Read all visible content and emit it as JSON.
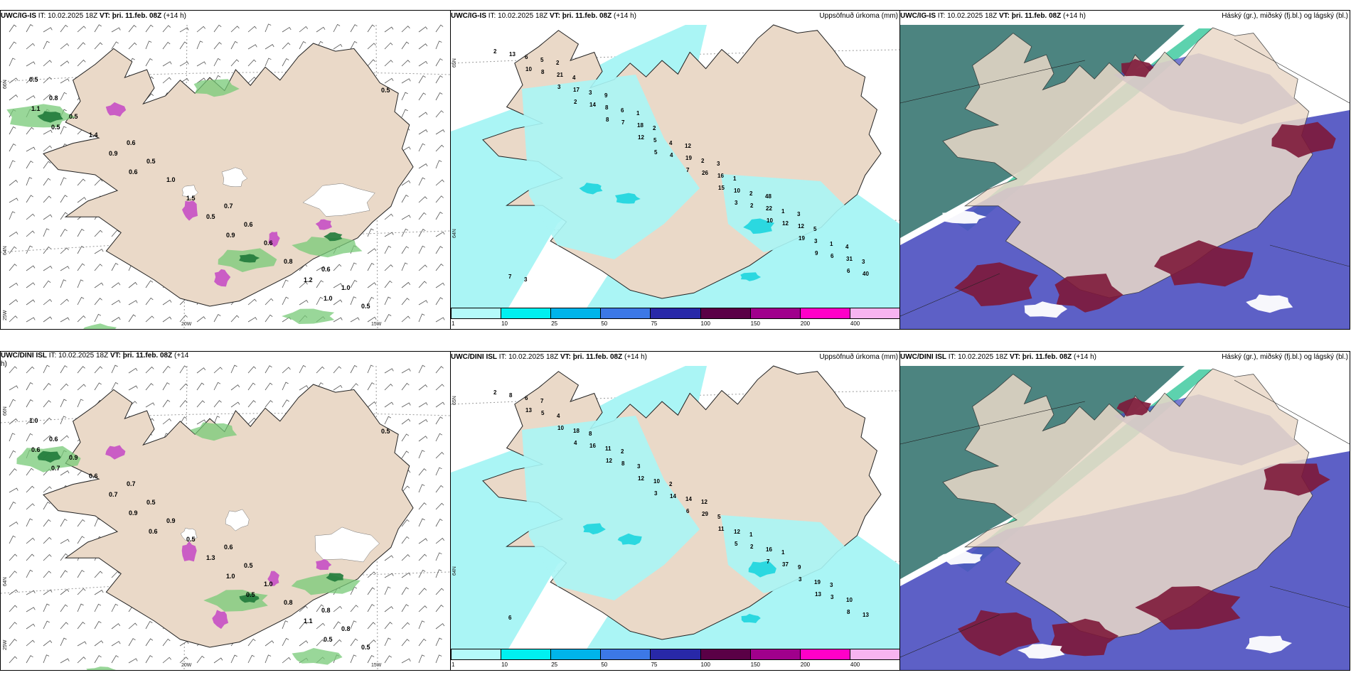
{
  "colors": {
    "land": "#ead9c8",
    "coast": "#222222",
    "precip_green": "#77c977",
    "precip_dark_green": "#1f7a3a",
    "precip_purple": "#c447c4",
    "snow_white": "#ffffff",
    "cloud_high": "#2d6f6a",
    "cloud_mid": "#4b4fc0",
    "cloud_low": "#7d1838",
    "cloud_jet": "#35c79a",
    "accum_base": "#aaf5f5"
  },
  "rows": [
    {
      "name": "UWC/IG-IS",
      "panels": [
        {
          "type": "wind-precip",
          "model": "UWC/IG-IS",
          "it": "IT: 10.02.2025 18Z",
          "vt": "VT: þri. 11.feb. 08Z",
          "lead": "(+14 h)",
          "right_title": "",
          "lat_ticks": [
            "66N",
            "64N",
            "25W"
          ],
          "lon_ticks": [
            "20W",
            "15W"
          ],
          "labels": [
            "0.5",
            "0.6",
            "0.7",
            "0.6",
            "0.8",
            "0.5",
            "0.6",
            "1.0",
            "0.5",
            "1.0",
            "0.6",
            "0.5",
            "1.4",
            "1.5",
            "0.8",
            "0.5",
            "0.9",
            "0.5",
            "1.2",
            "1.1",
            "0.6",
            "0.9",
            "1.0",
            "0.5"
          ]
        },
        {
          "type": "accum",
          "model": "UWC/IG-IS",
          "it": "IT: 10.02.2025 18Z",
          "vt": "VT: þri. 11.feb. 08Z",
          "lead": "(+14 h)",
          "right_title": "Uppsöfnuð úrkoma (mm)",
          "lat_ticks": [
            "65N",
            "64N"
          ],
          "labels": [
            "2",
            "2",
            "5",
            "3",
            "9",
            "10",
            "8",
            "7",
            "10",
            "6",
            "3",
            "12",
            "15",
            "19",
            "13",
            "14",
            "4",
            "2",
            "6",
            "8",
            "7",
            "26",
            "12",
            "40",
            "17",
            "5",
            "10",
            "3",
            "6",
            "8",
            "19",
            "22",
            "31",
            "21",
            "18",
            "16",
            "12",
            "7",
            "3",
            "4",
            "2",
            "1",
            "5",
            "6",
            "2",
            "1",
            "3",
            "4",
            "2",
            "1",
            "5",
            "3",
            "9",
            "12",
            "48",
            "4",
            "2",
            "1",
            "3",
            "3"
          ]
        },
        {
          "type": "cloud",
          "model": "UWC/IG-IS",
          "it": "IT: 10.02.2025 18Z",
          "vt": "VT: þri. 11.feb. 08Z",
          "lead": "(+14 h)",
          "right_title": "Háský (gr.), miðský (fj.bl.) og lágský (bl.)"
        }
      ]
    },
    {
      "name": "UWC/DINI ISL",
      "panels": [
        {
          "type": "wind-precip",
          "model": "UWC/DINI ISL",
          "it": "IT: 10.02.2025 18Z",
          "vt": "VT: þri. 11.feb. 08Z",
          "lead": "(+14",
          "lead2": "h)",
          "right_title": "",
          "lat_ticks": [
            "66N",
            "64N",
            "25W"
          ],
          "lon_ticks": [
            "20W",
            "15W"
          ],
          "labels": [
            "1.0",
            "0.7",
            "0.6",
            "0.8",
            "0.6",
            "0.5",
            "0.5",
            "0.8",
            "0.9",
            "0.9",
            "1.0",
            "0.5",
            "0.6",
            "0.5",
            "0.8",
            "0.5",
            "0.7",
            "1.3",
            "1.1",
            "0.6",
            "0.9",
            "1.0",
            "0.5",
            "0.7",
            "0.6",
            "0.5"
          ]
        },
        {
          "type": "accum",
          "model": "UWC/DINI ISL",
          "it": "IT: 10.02.2025 18Z",
          "vt": "VT: þri. 11.feb. 08Z",
          "lead": "(+14 h)",
          "right_title": "Uppsöfnuð úrkoma (mm)",
          "lat_ticks": [
            "65N",
            "64N"
          ],
          "labels": [
            "2",
            "4",
            "3",
            "5",
            "13",
            "13",
            "12",
            "6",
            "7",
            "8",
            "10",
            "12",
            "11",
            "3",
            "8",
            "16",
            "14",
            "2",
            "3",
            "5",
            "8",
            "29",
            "37",
            "13",
            "18",
            "10",
            "12",
            "19",
            "6",
            "11",
            "14",
            "16",
            "10",
            "4",
            "3",
            "5",
            "9",
            "6",
            "8",
            "2",
            "1",
            "3",
            "7",
            "2",
            "12",
            "1"
          ]
        },
        {
          "type": "cloud",
          "model": "UWC/DINI ISL",
          "it": "IT: 10.02.2025 18Z",
          "vt": "VT: þri. 11.feb. 08Z",
          "lead": "(+14 h)",
          "right_title": "Háský (gr.), miðský (fj.bl.) og lágský (bl.)"
        }
      ]
    }
  ],
  "colorbar": {
    "ticks": [
      "1",
      "10",
      "25",
      "50",
      "75",
      "100",
      "150",
      "200",
      "400"
    ],
    "colors": [
      "#b4fafa",
      "#00f0f0",
      "#00b4ea",
      "#3c78e6",
      "#2828a8",
      "#5a0046",
      "#a0008c",
      "#ff00c8",
      "#f7b4f0"
    ]
  }
}
